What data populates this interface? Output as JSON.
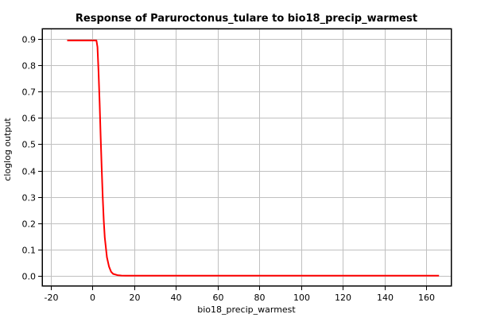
{
  "chart_data": {
    "type": "line",
    "title": "Response of Paruroctonus_tulare to bio18_precip_warmest",
    "xlabel": "bio18_precip_warmest",
    "ylabel": "cloglog output",
    "xlim": [
      -24,
      172
    ],
    "ylim": [
      -0.04,
      0.94
    ],
    "x_ticks": [
      -20,
      0,
      20,
      40,
      60,
      80,
      100,
      120,
      140,
      160
    ],
    "y_ticks": [
      0.0,
      0.1,
      0.2,
      0.3,
      0.4,
      0.5,
      0.6,
      0.7,
      0.8,
      0.9
    ],
    "x_tick_labels": [
      "-20",
      "0",
      "20",
      "40",
      "60",
      "80",
      "100",
      "120",
      "140",
      "160"
    ],
    "y_tick_labels": [
      "0.0",
      "0.1",
      "0.2",
      "0.3",
      "0.4",
      "0.5",
      "0.6",
      "0.7",
      "0.8",
      "0.9"
    ],
    "grid": true,
    "series": [
      {
        "color": "#ff0000",
        "x": [
          -12,
          0,
          2,
          2.5,
          3,
          3.5,
          4,
          4.5,
          5,
          5.5,
          6,
          7,
          8,
          9,
          10,
          12,
          14,
          16,
          166
        ],
        "y": [
          0.895,
          0.895,
          0.895,
          0.87,
          0.78,
          0.66,
          0.53,
          0.41,
          0.3,
          0.21,
          0.145,
          0.07,
          0.035,
          0.015,
          0.007,
          0.002,
          0.0005,
          0.0,
          0.0
        ]
      }
    ]
  }
}
